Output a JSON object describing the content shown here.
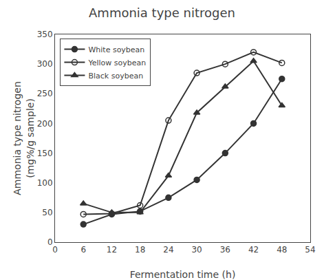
{
  "chart_data": {
    "type": "line",
    "title": "Ammonia type nitrogen",
    "x_label": "Fermentation time (h)",
    "y_label": "Ammonia type nitrogen\n(mg%/g sample)",
    "x": [
      6,
      12,
      18,
      24,
      30,
      36,
      42,
      48
    ],
    "series": [
      {
        "name": "White soybean",
        "color": "#333333",
        "marker": "circle",
        "values": [
          30,
          47,
          52,
          75,
          105,
          150,
          200,
          275
        ]
      },
      {
        "name": "Yellow soybean",
        "color": "#333333",
        "marker": "circle-open",
        "values": [
          47,
          48,
          62,
          205,
          285,
          300,
          320,
          302
        ]
      },
      {
        "name": "Black soybean",
        "color": "#333333",
        "marker": "triangle-up",
        "values": [
          65,
          50,
          50,
          112,
          218,
          262,
          305,
          230
        ]
      }
    ],
    "xlim": [
      0,
      54
    ],
    "xticks": [
      0,
      6,
      12,
      18,
      24,
      30,
      36,
      42,
      48,
      54
    ],
    "ylim": [
      0,
      350
    ],
    "yticks": [
      0,
      50,
      100,
      150,
      200,
      250,
      300,
      350
    ],
    "grid": false,
    "legend": "upper left"
  }
}
